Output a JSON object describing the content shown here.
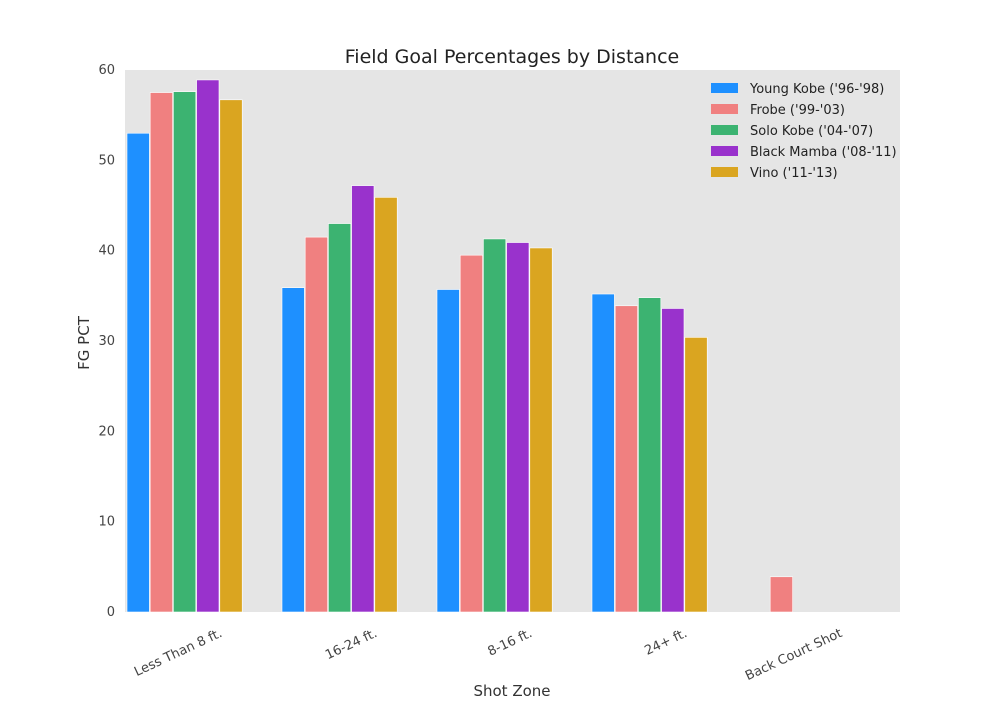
{
  "chart_data": {
    "type": "bar",
    "title": "Field Goal Percentages by Distance",
    "xlabel": "Shot Zone",
    "ylabel": "FG PCT",
    "ylim": [
      0,
      60
    ],
    "yticks": [
      0,
      10,
      20,
      30,
      40,
      50,
      60
    ],
    "grid": false,
    "legend_position": "top-right",
    "background_color": "#e5e5e5",
    "categories": [
      "Less Than 8 ft.",
      "16-24 ft.",
      "8-16 ft.",
      "24+ ft.",
      "Back Court Shot"
    ],
    "series": [
      {
        "name": "Young Kobe ('96-'98)",
        "color": "#1e90ff",
        "values": [
          53.0,
          35.9,
          35.7,
          35.2,
          null
        ]
      },
      {
        "name": "Frobe ('99-'03)",
        "color": "#f08080",
        "values": [
          57.5,
          41.5,
          39.5,
          33.9,
          3.9
        ]
      },
      {
        "name": "Solo Kobe ('04-'07)",
        "color": "#3cb371",
        "values": [
          57.6,
          43.0,
          41.3,
          34.8,
          null
        ]
      },
      {
        "name": "Black Mamba ('08-'11)",
        "color": "#9932cc",
        "values": [
          58.9,
          47.2,
          40.9,
          33.6,
          null
        ]
      },
      {
        "name": "Vino ('11-'13)",
        "color": "#daa520",
        "values": [
          56.7,
          45.9,
          40.3,
          30.4,
          null
        ]
      }
    ]
  }
}
